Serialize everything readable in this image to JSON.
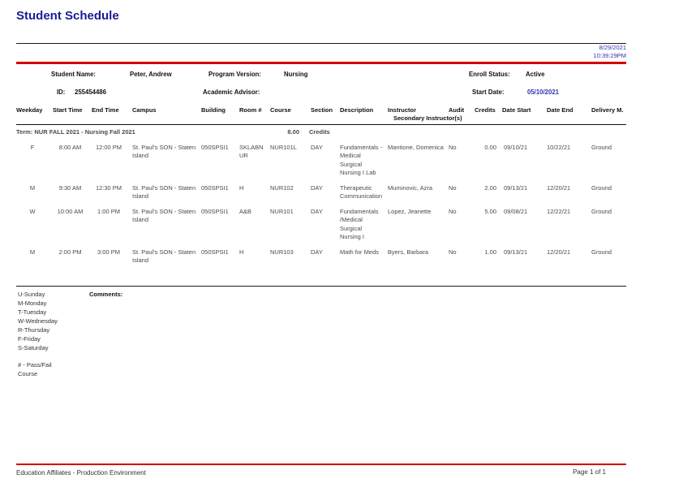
{
  "page": {
    "title": "Student Schedule",
    "printed_date": "8/29/2021",
    "printed_time": "10:39:29PM",
    "footer_left": "Education Affiliates - Production Environment",
    "footer_right": "Page 1 of 1"
  },
  "student_info": {
    "student_name_label": "Student Name:",
    "student_name": "Peter, Andrew",
    "id_label": "ID:",
    "id": "255454486",
    "program_version_label": "Program Version:",
    "program_version": "Nursing",
    "academic_advisor_label": "Academic Advisor:",
    "academic_advisor": "",
    "enroll_status_label": "Enroll Status:",
    "enroll_status": "Active",
    "start_date_label": "Start Date:",
    "start_date": "05/10/2021"
  },
  "schedule": {
    "columns": {
      "weekday": "Weekday",
      "start": "Start Time",
      "end": "End Time",
      "campus": "Campus",
      "building": "Building",
      "room": "Room #",
      "course": "Course",
      "section": "Section",
      "description": "Description",
      "instructor_line1": "Instructor",
      "instructor_line2": "Secondary Instructor(s)",
      "audit": "Audit",
      "credits": "Credits",
      "date_start": "Date Start",
      "date_end": "Date End",
      "delivery": "Delivery M."
    },
    "term": {
      "label": "Term: NUR FALL 2021 - Nursing Fall 2021",
      "credits_value": "8.00",
      "credits_label": "Credits"
    },
    "rows": [
      {
        "weekday": "F",
        "start": "8:00 AM",
        "end": "12:00 PM",
        "campus": "St. Paul's SON - Staten Island",
        "building": "050SPSI1",
        "room": "SKLABNUR",
        "course": "NUR101L",
        "section": "DAY",
        "description": "Fundamentals -Medical Surgical Nursing I Lab",
        "instructor": "Mantione, Domenica",
        "audit": "No",
        "credits": "0.00",
        "date_start": "09/10/21",
        "date_end": "10/22/21",
        "delivery": "Ground"
      },
      {
        "weekday": "M",
        "start": "9:30 AM",
        "end": "12:30 PM",
        "campus": "St. Paul's SON - Staten Island",
        "building": "050SPSI1",
        "room": "H",
        "course": "NUR102",
        "section": "DAY",
        "description": "Therapeutic Communication",
        "instructor": "Muminovic, Azra",
        "audit": "No",
        "credits": "2.00",
        "date_start": "09/13/21",
        "date_end": "12/20/21",
        "delivery": "Ground"
      },
      {
        "weekday": "W",
        "start": "10:00 AM",
        "end": "1:00 PM",
        "campus": "St. Paul's SON - Staten Island",
        "building": "050SPSI1",
        "room": "A&B",
        "course": "NUR101",
        "section": "DAY",
        "description": "Fundamentals /Medical Surgical Nursing I",
        "instructor": "Lopez, Jeanette",
        "audit": "No",
        "credits": "5.00",
        "date_start": "09/08/21",
        "date_end": "12/22/21",
        "delivery": "Ground"
      },
      {
        "weekday": "M",
        "start": "2:00 PM",
        "end": "3:00 PM",
        "campus": "St. Paul's SON - Staten Island",
        "building": "050SPSI1",
        "room": "H",
        "course": "NUR103",
        "section": "DAY",
        "description": "Math for Meds",
        "instructor": "Byers, Barbara",
        "audit": "No",
        "credits": "1.00",
        "date_start": "09/13/21",
        "date_end": "12/20/21",
        "delivery": "Ground"
      }
    ]
  },
  "legend": {
    "weekdays": [
      "U-Sunday",
      "M-Monday",
      "T-Tuesday",
      "W-Wednesday",
      "R-Thursday",
      "F-Friday",
      "S-Saturday"
    ],
    "passfail_lines": [
      "# - Pass/Fail",
      "Course"
    ],
    "comments_label": "Comments:"
  },
  "colors": {
    "accent_red": "#d40000",
    "title_navy": "#1b1b99",
    "date_blue": "#3333b3"
  }
}
